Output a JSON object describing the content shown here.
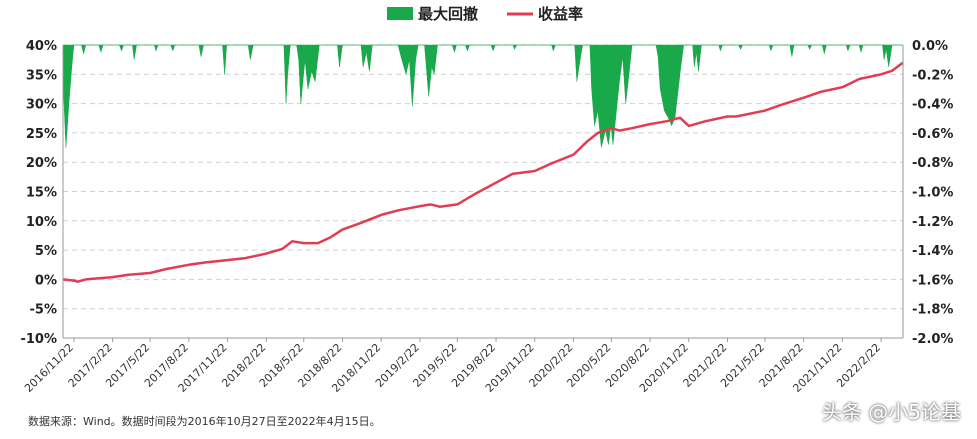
{
  "source_note": "数据来源：Wind。数据时间段为2016年10月27日至2022年4月15日。",
  "watermark": "头条 @小5论基",
  "colors": {
    "drawdown": "#19a84a",
    "return": "#e23b54",
    "grid": "#cfcfcf",
    "axis": "#9a9a9a"
  },
  "chart_data": {
    "type": "line",
    "legend": {
      "placement": "top-center",
      "entries": [
        "最大回撤",
        "收益率"
      ]
    },
    "grid": true,
    "y_left": {
      "ylim": [
        -0.1,
        0.4
      ],
      "ticks": [
        "-10%",
        "-5%",
        "0%",
        "5%",
        "10%",
        "15%",
        "20%",
        "25%",
        "30%",
        "35%",
        "40%"
      ]
    },
    "y_right": {
      "ylim": [
        -0.02,
        0.0
      ],
      "ticks": [
        "-2.0%",
        "-1.8%",
        "-1.6%",
        "-1.4%",
        "-1.2%",
        "-1.0%",
        "-0.8%",
        "-0.6%",
        "-0.4%",
        "-0.2%",
        "0.0%"
      ]
    },
    "x_range": [
      "2016/10/27",
      "2022/4/15"
    ],
    "x_ticks": [
      "2016/11/22",
      "2017/2/22",
      "2017/5/22",
      "2017/8/22",
      "2017/11/22",
      "2018/2/22",
      "2018/5/22",
      "2018/8/22",
      "2018/11/22",
      "2019/2/22",
      "2019/5/22",
      "2019/8/22",
      "2019/11/22",
      "2020/2/22",
      "2020/5/22",
      "2020/8/22",
      "2020/11/22",
      "2021/2/22",
      "2021/5/22",
      "2021/8/22",
      "2021/11/22",
      "2022/2/22"
    ],
    "series": [
      {
        "name": "收益率",
        "type": "line",
        "axis": "left",
        "points": [
          [
            "2016/10/27",
            0.0
          ],
          [
            "2016/11/22",
            -0.002
          ],
          [
            "2016/12/1",
            -0.004
          ],
          [
            "2016/12/20",
            0.0
          ],
          [
            "2017/2/22",
            0.004
          ],
          [
            "2017/4/1",
            0.008
          ],
          [
            "2017/5/22",
            0.011
          ],
          [
            "2017/7/1",
            0.018
          ],
          [
            "2017/8/22",
            0.025
          ],
          [
            "2017/10/1",
            0.029
          ],
          [
            "2017/11/22",
            0.033
          ],
          [
            "2018/1/1",
            0.036
          ],
          [
            "2018/2/22",
            0.044
          ],
          [
            "2018/4/1",
            0.052
          ],
          [
            "2018/4/25",
            0.065
          ],
          [
            "2018/5/22",
            0.062
          ],
          [
            "2018/6/25",
            0.062
          ],
          [
            "2018/7/25",
            0.072
          ],
          [
            "2018/8/22",
            0.085
          ],
          [
            "2018/9/30",
            0.095
          ],
          [
            "2018/11/22",
            0.11
          ],
          [
            "2019/1/2",
            0.118
          ],
          [
            "2019/2/22",
            0.125
          ],
          [
            "2019/3/20",
            0.128
          ],
          [
            "2019/4/10",
            0.124
          ],
          [
            "2019/5/22",
            0.128
          ],
          [
            "2019/7/1",
            0.145
          ],
          [
            "2019/8/22",
            0.165
          ],
          [
            "2019/9/30",
            0.18
          ],
          [
            "2019/11/22",
            0.185
          ],
          [
            "2020/1/1",
            0.198
          ],
          [
            "2020/2/22",
            0.213
          ],
          [
            "2020/3/25",
            0.235
          ],
          [
            "2020/4/20",
            0.25
          ],
          [
            "2020/5/22",
            0.258
          ],
          [
            "2020/6/10",
            0.254
          ],
          [
            "2020/7/10",
            0.258
          ],
          [
            "2020/8/22",
            0.265
          ],
          [
            "2020/10/1",
            0.27
          ],
          [
            "2020/11/1",
            0.276
          ],
          [
            "2020/11/22",
            0.262
          ],
          [
            "2021/1/1",
            0.27
          ],
          [
            "2021/2/22",
            0.278
          ],
          [
            "2021/3/15",
            0.278
          ],
          [
            "2021/5/22",
            0.288
          ],
          [
            "2021/6/30",
            0.298
          ],
          [
            "2021/8/22",
            0.31
          ],
          [
            "2021/10/1",
            0.32
          ],
          [
            "2021/11/22",
            0.328
          ],
          [
            "2022/1/1",
            0.342
          ],
          [
            "2022/2/22",
            0.35
          ],
          [
            "2022/3/20",
            0.356
          ],
          [
            "2022/4/15",
            0.37
          ]
        ]
      },
      {
        "name": "最大回撤",
        "type": "area",
        "axis": "right",
        "baseline": 0.0,
        "points": [
          [
            "2016/10/27",
            0.0
          ],
          [
            "2016/10/28",
            -0.003
          ],
          [
            "2016/11/3",
            -0.007
          ],
          [
            "2016/11/10",
            -0.004
          ],
          [
            "2016/11/17",
            -0.0015
          ],
          [
            "2016/11/22",
            0.0
          ],
          [
            "2016/12/10",
            0.0
          ],
          [
            "2016/12/15",
            -0.0006
          ],
          [
            "2016/12/20",
            0.0
          ],
          [
            "2017/1/20",
            0.0
          ],
          [
            "2017/1/25",
            -0.0005
          ],
          [
            "2017/1/30",
            0.0
          ],
          [
            "2017/3/10",
            0.0
          ],
          [
            "2017/3/15",
            -0.0004
          ],
          [
            "2017/3/20",
            0.0
          ],
          [
            "2017/4/10",
            0.0
          ],
          [
            "2017/4/14",
            -0.001
          ],
          [
            "2017/4/20",
            0.0
          ],
          [
            "2017/6/1",
            0.0
          ],
          [
            "2017/6/5",
            -0.0004
          ],
          [
            "2017/6/10",
            0.0
          ],
          [
            "2017/7/10",
            0.0
          ],
          [
            "2017/7/15",
            -0.0004
          ],
          [
            "2017/7/20",
            0.0
          ],
          [
            "2017/9/15",
            0.0
          ],
          [
            "2017/9/20",
            -0.0008
          ],
          [
            "2017/9/26",
            0.0
          ],
          [
            "2017/11/10",
            0.0
          ],
          [
            "2017/11/15",
            -0.002
          ],
          [
            "2017/11/20",
            0.0
          ],
          [
            "2018/1/10",
            0.0
          ],
          [
            "2018/1/15",
            -0.001
          ],
          [
            "2018/1/22",
            0.0
          ],
          [
            "2018/4/5",
            0.0
          ],
          [
            "2018/4/10",
            -0.004
          ],
          [
            "2018/4/14",
            -0.002
          ],
          [
            "2018/4/20",
            0.0
          ],
          [
            "2018/5/5",
            0.0
          ],
          [
            "2018/5/10",
            -0.001
          ],
          [
            "2018/5/15",
            -0.004
          ],
          [
            "2018/5/25",
            -0.001
          ],
          [
            "2018/6/1",
            -0.003
          ],
          [
            "2018/6/10",
            -0.0018
          ],
          [
            "2018/6/18",
            -0.0025
          ],
          [
            "2018/6/28",
            0.0
          ],
          [
            "2018/8/10",
            0.0
          ],
          [
            "2018/8/15",
            -0.0015
          ],
          [
            "2018/8/22",
            0.0
          ],
          [
            "2018/10/5",
            0.0
          ],
          [
            "2018/10/10",
            -0.0015
          ],
          [
            "2018/10/18",
            -0.0005
          ],
          [
            "2018/10/25",
            -0.0018
          ],
          [
            "2018/11/1",
            0.0
          ],
          [
            "2019/1/1",
            0.0
          ],
          [
            "2019/1/10",
            -0.001
          ],
          [
            "2019/1/20",
            -0.002
          ],
          [
            "2019/1/28",
            -0.001
          ],
          [
            "2019/2/4",
            -0.0042
          ],
          [
            "2019/2/12",
            -0.001
          ],
          [
            "2019/2/18",
            0.0
          ],
          [
            "2019/3/5",
            0.0
          ],
          [
            "2019/3/15",
            -0.0035
          ],
          [
            "2019/3/22",
            -0.0015
          ],
          [
            "2019/3/28",
            -0.002
          ],
          [
            "2019/4/5",
            0.0
          ],
          [
            "2019/5/10",
            0.0
          ],
          [
            "2019/5/15",
            -0.0005
          ],
          [
            "2019/5/20",
            0.0
          ],
          [
            "2019/6/10",
            0.0
          ],
          [
            "2019/6/15",
            -0.0004
          ],
          [
            "2019/6/20",
            0.0
          ],
          [
            "2019/8/10",
            0.0
          ],
          [
            "2019/8/15",
            -0.0004
          ],
          [
            "2019/8/20",
            0.0
          ],
          [
            "2019/10/1",
            0.0
          ],
          [
            "2019/10/5",
            -0.0003
          ],
          [
            "2019/10/10",
            0.0
          ],
          [
            "2020/1/1",
            0.0
          ],
          [
            "2020/1/5",
            -0.0004
          ],
          [
            "2020/1/10",
            0.0
          ],
          [
            "2020/2/25",
            0.0
          ],
          [
            "2020/3/1",
            -0.0025
          ],
          [
            "2020/3/10",
            -0.0008
          ],
          [
            "2020/3/15",
            0.0
          ],
          [
            "2020/4/1",
            0.0
          ],
          [
            "2020/4/5",
            -0.003
          ],
          [
            "2020/4/12",
            -0.0055
          ],
          [
            "2020/4/20",
            -0.0045
          ],
          [
            "2020/4/28",
            -0.007
          ],
          [
            "2020/5/8",
            -0.0058
          ],
          [
            "2020/5/15",
            -0.0068
          ],
          [
            "2020/5/21",
            -0.0055
          ],
          [
            "2020/5/26",
            -0.0068
          ],
          [
            "2020/6/2",
            -0.0048
          ],
          [
            "2020/6/10",
            -0.0025
          ],
          [
            "2020/6/18",
            -0.0008
          ],
          [
            "2020/6/25",
            -0.004
          ],
          [
            "2020/7/3",
            -0.002
          ],
          [
            "2020/7/10",
            0.0
          ],
          [
            "2020/9/5",
            0.0
          ],
          [
            "2020/9/10",
            -0.0008
          ],
          [
            "2020/9/15",
            -0.003
          ],
          [
            "2020/9/25",
            -0.0045
          ],
          [
            "2020/10/5",
            -0.005
          ],
          [
            "2020/10/12",
            -0.0055
          ],
          [
            "2020/10/20",
            -0.005
          ],
          [
            "2020/10/28",
            -0.003
          ],
          [
            "2020/11/3",
            -0.0015
          ],
          [
            "2020/11/10",
            0.0
          ],
          [
            "2020/12/1",
            0.0
          ],
          [
            "2020/12/5",
            -0.0015
          ],
          [
            "2020/12/10",
            -0.0005
          ],
          [
            "2020/12/15",
            -0.0018
          ],
          [
            "2020/12/22",
            0.0
          ],
          [
            "2021/2/1",
            0.0
          ],
          [
            "2021/2/5",
            -0.0004
          ],
          [
            "2021/2/10",
            0.0
          ],
          [
            "2021/3/20",
            0.0
          ],
          [
            "2021/3/25",
            -0.0003
          ],
          [
            "2021/3/30",
            0.0
          ],
          [
            "2021/6/1",
            0.0
          ],
          [
            "2021/6/5",
            -0.0004
          ],
          [
            "2021/6/10",
            0.0
          ],
          [
            "2021/7/20",
            0.0
          ],
          [
            "2021/7/25",
            -0.0008
          ],
          [
            "2021/7/30",
            0.0
          ],
          [
            "2021/9/1",
            0.0
          ],
          [
            "2021/9/5",
            -0.0003
          ],
          [
            "2021/9/10",
            0.0
          ],
          [
            "2021/10/5",
            0.0
          ],
          [
            "2021/10/10",
            -0.0006
          ],
          [
            "2021/10/15",
            0.0
          ],
          [
            "2021/12/1",
            0.0
          ],
          [
            "2021/12/5",
            -0.0004
          ],
          [
            "2021/12/10",
            0.0
          ],
          [
            "2022/1/1",
            0.0
          ],
          [
            "2022/1/5",
            -0.0005
          ],
          [
            "2022/1/10",
            0.0
          ],
          [
            "2022/2/25",
            0.0
          ],
          [
            "2022/3/1",
            -0.001
          ],
          [
            "2022/3/6",
            -0.0003
          ],
          [
            "2022/3/12",
            -0.0015
          ],
          [
            "2022/3/20",
            0.0
          ],
          [
            "2022/4/15",
            0.0
          ]
        ]
      }
    ]
  }
}
